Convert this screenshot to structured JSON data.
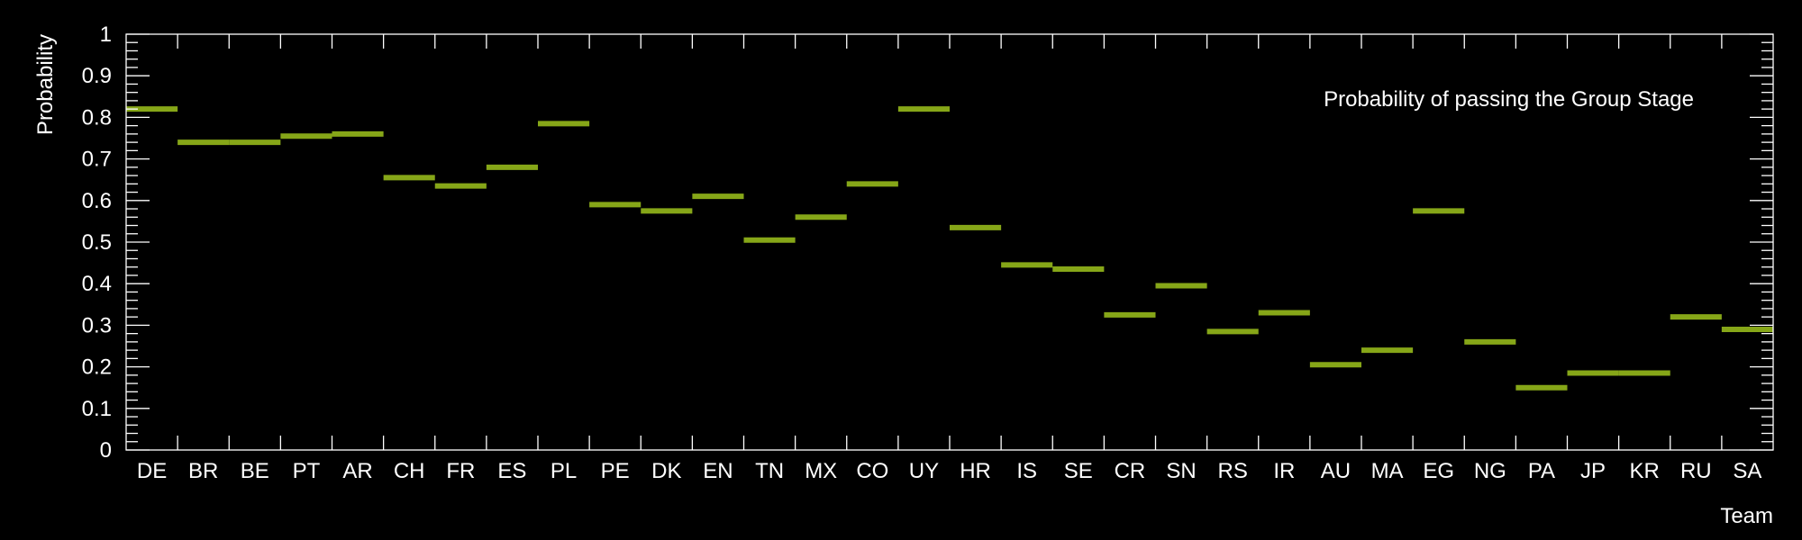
{
  "chart_data": {
    "type": "bar",
    "legend_text": "Probability of passing the Group Stage",
    "legend_placement": "top-right",
    "xlabel": "Team",
    "ylabel": "Probability",
    "ylim": [
      0,
      1
    ],
    "yticks": [
      "0",
      "0.1",
      "0.2",
      "0.3",
      "0.4",
      "0.5",
      "0.6",
      "0.7",
      "0.8",
      "0.9",
      "1"
    ],
    "grid": false,
    "color": "#86a618",
    "categories": [
      "DE",
      "BR",
      "BE",
      "PT",
      "AR",
      "CH",
      "FR",
      "ES",
      "PL",
      "PE",
      "DK",
      "EN",
      "TN",
      "MX",
      "CO",
      "UY",
      "HR",
      "IS",
      "SE",
      "CR",
      "SN",
      "RS",
      "IR",
      "AU",
      "MA",
      "EG",
      "NG",
      "PA",
      "JP",
      "KR",
      "RU",
      "SA"
    ],
    "values": [
      0.82,
      0.74,
      0.74,
      0.755,
      0.76,
      0.655,
      0.635,
      0.68,
      0.785,
      0.59,
      0.575,
      0.61,
      0.505,
      0.56,
      0.64,
      0.82,
      0.535,
      0.445,
      0.435,
      0.325,
      0.395,
      0.285,
      0.33,
      0.205,
      0.24,
      0.575,
      0.26,
      0.15,
      0.185,
      0.185,
      0.32,
      0.29
    ]
  }
}
